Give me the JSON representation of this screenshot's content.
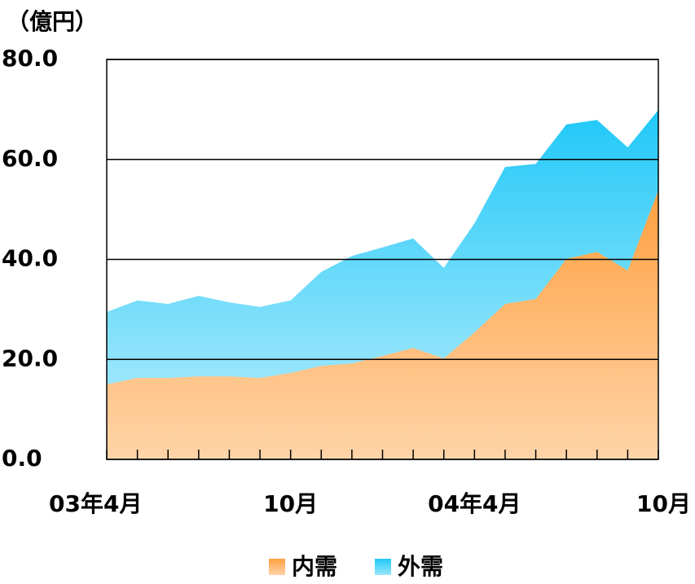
{
  "chart_data": {
    "type": "stacked_area",
    "unit_label": "（億円）",
    "categories": [
      "03年4月",
      null,
      null,
      null,
      null,
      null,
      "10月",
      null,
      null,
      null,
      null,
      null,
      "04年4月",
      null,
      null,
      null,
      null,
      null,
      "10月"
    ],
    "series": [
      {
        "name": "内需",
        "color": "#ffa040",
        "values": [
          15.0,
          16.3,
          16.3,
          16.6,
          16.6,
          16.3,
          17.3,
          18.7,
          19.2,
          20.7,
          22.3,
          20.2,
          25.4,
          31.1,
          32.1,
          40.1,
          41.5,
          37.8,
          53.8
        ]
      },
      {
        "name": "外需",
        "color": "#20c8f8",
        "values": [
          14.5,
          15.5,
          14.8,
          16.1,
          14.8,
          14.2,
          14.5,
          18.8,
          21.5,
          21.7,
          21.9,
          18.1,
          21.8,
          27.4,
          27.0,
          26.9,
          26.4,
          24.6,
          16.1
        ]
      }
    ],
    "ylim": [
      0,
      80
    ],
    "yticks": [
      {
        "value": 0,
        "label": "0.0"
      },
      {
        "value": 20,
        "label": "20.0"
      },
      {
        "value": 40,
        "label": "40.0"
      },
      {
        "value": 60,
        "label": "60.0"
      },
      {
        "value": 80,
        "label": "80.0"
      }
    ],
    "grid": true,
    "legend": "bottom"
  }
}
